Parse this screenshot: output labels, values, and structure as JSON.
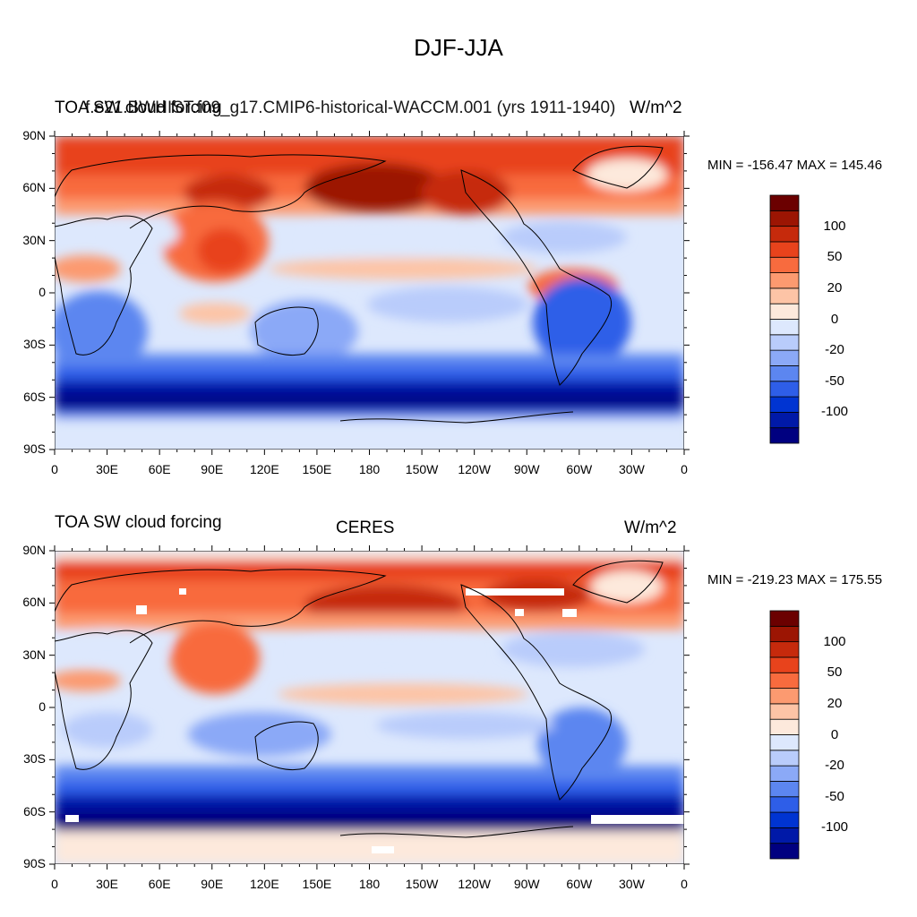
{
  "figure_title": "DJF-JJA",
  "colorbar": {
    "colors": [
      "#000080",
      "#0019a8",
      "#0034d2",
      "#2e5ee8",
      "#5c86f0",
      "#8ba9f7",
      "#b9ccfb",
      "#dde8fd",
      "#fde9dc",
      "#fdc4a6",
      "#fc9a70",
      "#f86b3e",
      "#e8431c",
      "#c62a0c",
      "#9c1503",
      "#6b0000"
    ],
    "tick_labels": [
      "100",
      "50",
      "20",
      "0",
      "-20",
      "-50",
      "-100"
    ]
  },
  "panels": [
    {
      "id": "top",
      "left_title": "TOA SW cloud forcing",
      "center_title": "f.e21.BWHIST.f09_g17.CMIP6-historical-WACCM.001 (yrs 1911-1940)",
      "units": "W/m^2",
      "minmax": "MIN = -156.47 MAX = 145.46",
      "lat_labels": [
        "90N",
        "60N",
        "30N",
        "0",
        "30S",
        "60S",
        "90S"
      ],
      "lon_labels": [
        "0",
        "30E",
        "60E",
        "90E",
        "120E",
        "150E",
        "180",
        "150W",
        "120W",
        "90W",
        "60W",
        "30W",
        "0"
      ]
    },
    {
      "id": "bottom",
      "left_title": "TOA SW cloud forcing",
      "center_title": "CERES",
      "units": "W/m^2",
      "minmax": "MIN = -219.23 MAX = 175.55",
      "lat_labels": [
        "90N",
        "60N",
        "30N",
        "0",
        "30S",
        "60S",
        "90S"
      ],
      "lon_labels": [
        "0",
        "30E",
        "60E",
        "90E",
        "120E",
        "150E",
        "180",
        "150W",
        "120W",
        "90W",
        "60W",
        "30W",
        "0"
      ]
    }
  ]
}
